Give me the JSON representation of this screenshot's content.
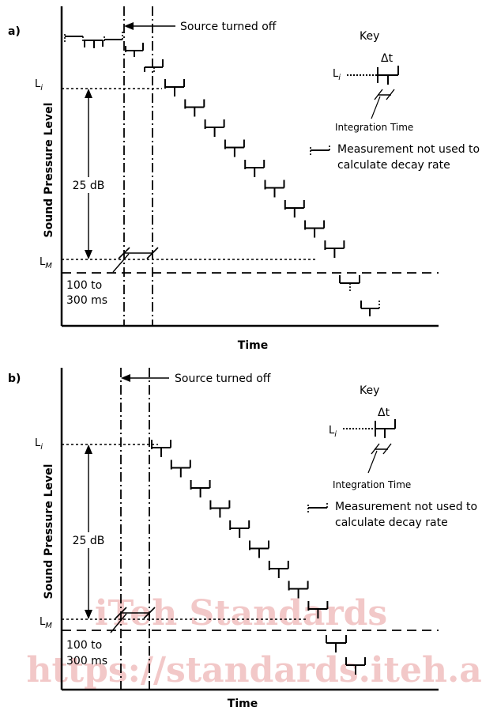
{
  "panels": [
    {
      "id": "a",
      "label": "a)",
      "ylabel": "Sound Pressure Level",
      "xlabel": "Time",
      "source_off": "Source turned off",
      "li": "L",
      "li_sub": "i",
      "lm": "L",
      "lm_sub": "M",
      "db_range": "25 dB",
      "ms_line1": "100 to",
      "ms_line2": "300 ms",
      "key_title": "Key",
      "key_li": "L",
      "key_li_sub": "i",
      "key_delta": "Δt",
      "key_integration": "Integration Time",
      "key_not_used_1": "Measurement not used to",
      "key_not_used_2": "calculate decay rate"
    },
    {
      "id": "b",
      "label": "b)",
      "ylabel": "Sound Pressure Level",
      "xlabel": "Time",
      "source_off": "Source turned off",
      "li": "L",
      "li_sub": "i",
      "lm": "L",
      "lm_sub": "M",
      "db_range": "25 dB",
      "ms_line1": "100 to",
      "ms_line2": "300 ms",
      "key_title": "Key",
      "key_li": "L",
      "key_li_sub": "i",
      "key_delta": "Δt",
      "key_integration": "Integration Time",
      "key_not_used_1": "Measurement not used to",
      "key_not_used_2": "calculate decay rate"
    }
  ],
  "watermark": {
    "line1": "iTeh Standards",
    "line2": "https://standards.iteh.ai"
  }
}
